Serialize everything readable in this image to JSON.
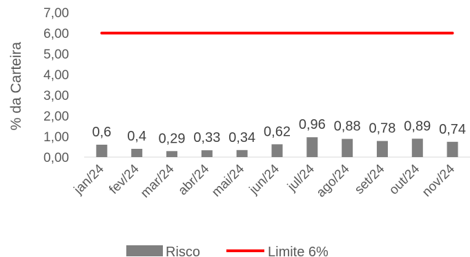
{
  "chart_data": {
    "type": "bar",
    "categories": [
      "jan/24",
      "fev/24",
      "mar/24",
      "abr/24",
      "mai/24",
      "jun/24",
      "jul/24",
      "ago/24",
      "set/24",
      "out/24",
      "nov/24"
    ],
    "series": [
      {
        "name": "Risco",
        "type": "bar",
        "values": [
          0.6,
          0.4,
          0.29,
          0.33,
          0.34,
          0.62,
          0.96,
          0.88,
          0.78,
          0.89,
          0.74
        ],
        "color": "#7f7f7f"
      },
      {
        "name": "Limite 6%",
        "type": "line",
        "values": [
          6,
          6,
          6,
          6,
          6,
          6,
          6,
          6,
          6,
          6,
          6
        ],
        "color": "#ff0000"
      }
    ],
    "data_labels": [
      "0,6",
      "0,4",
      "0,29",
      "0,33",
      "0,34",
      "0,62",
      "0,96",
      "0,88",
      "0,78",
      "0,89",
      "0,74"
    ],
    "ylabel": "% da Carteira",
    "ylim": [
      0,
      7
    ],
    "yticks": [
      "0,00",
      "1,00",
      "2,00",
      "3,00",
      "4,00",
      "5,00",
      "6,00",
      "7,00"
    ],
    "grid": false,
    "legend_position": "bottom"
  }
}
